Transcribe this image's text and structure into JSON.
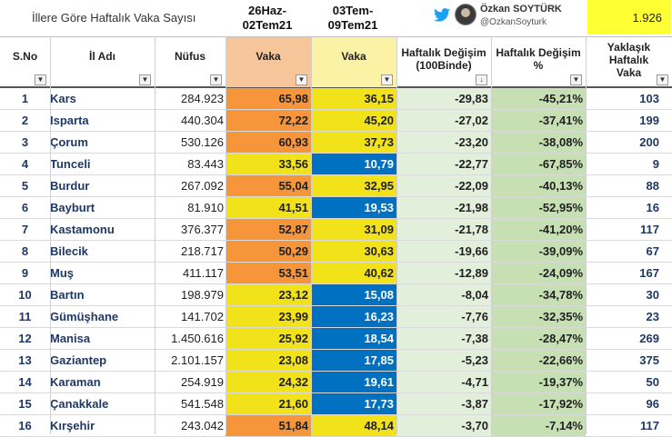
{
  "header": {
    "title": "İllere Göre Haftalık Vaka Sayısı",
    "period1": [
      "26Haz-",
      "02Tem21"
    ],
    "period2": [
      "03Tem-",
      "09Tem21"
    ],
    "author": "Özkan SOYTÜRK",
    "handle": "@OzkanSoyturk",
    "total": "1.926",
    "icons": [
      "twitter-icon",
      "avatar"
    ]
  },
  "columns": [
    {
      "key": "sno",
      "label": [
        "S.No"
      ]
    },
    {
      "key": "il",
      "label": [
        "İl Adı"
      ]
    },
    {
      "key": "nufus",
      "label": [
        "Nüfus"
      ]
    },
    {
      "key": "v1",
      "label": [
        "Vaka"
      ]
    },
    {
      "key": "v2",
      "label": [
        "Vaka"
      ]
    },
    {
      "key": "d1",
      "label": [
        "Haftalık Değişim",
        "(100Binde)"
      ]
    },
    {
      "key": "d2",
      "label": [
        "Haftalık Değişim",
        "%"
      ]
    },
    {
      "key": "yak",
      "label": [
        "Yaklaşık",
        "Haftalık",
        "Vaka"
      ]
    }
  ],
  "colors": {
    "orange": "#f7953a",
    "yellow": "#f2e21a",
    "blue": "#0070c0",
    "change_light": "#e2efda",
    "change_mid": "#c6e0b4",
    "total_bg": "#ffff33"
  },
  "rows": [
    {
      "sno": "1",
      "il": "Kars",
      "nufus": "284.923",
      "v1": "65,98",
      "v1c": "orange",
      "v2": "36,15",
      "v2c": "yellow",
      "d1": "-29,83",
      "d2": "-45,21%",
      "yak": "103"
    },
    {
      "sno": "2",
      "il": "Isparta",
      "nufus": "440.304",
      "v1": "72,22",
      "v1c": "orange",
      "v2": "45,20",
      "v2c": "yellow",
      "d1": "-27,02",
      "d2": "-37,41%",
      "yak": "199"
    },
    {
      "sno": "3",
      "il": "Çorum",
      "nufus": "530.126",
      "v1": "60,93",
      "v1c": "orange",
      "v2": "37,73",
      "v2c": "yellow",
      "d1": "-23,20",
      "d2": "-38,08%",
      "yak": "200"
    },
    {
      "sno": "4",
      "il": "Tunceli",
      "nufus": "83.443",
      "v1": "33,56",
      "v1c": "yellow",
      "v2": "10,79",
      "v2c": "blue",
      "d1": "-22,77",
      "d2": "-67,85%",
      "yak": "9"
    },
    {
      "sno": "5",
      "il": "Burdur",
      "nufus": "267.092",
      "v1": "55,04",
      "v1c": "orange",
      "v2": "32,95",
      "v2c": "yellow",
      "d1": "-22,09",
      "d2": "-40,13%",
      "yak": "88"
    },
    {
      "sno": "6",
      "il": "Bayburt",
      "nufus": "81.910",
      "v1": "41,51",
      "v1c": "yellow",
      "v2": "19,53",
      "v2c": "blue",
      "d1": "-21,98",
      "d2": "-52,95%",
      "yak": "16"
    },
    {
      "sno": "7",
      "il": "Kastamonu",
      "nufus": "376.377",
      "v1": "52,87",
      "v1c": "orange",
      "v2": "31,09",
      "v2c": "yellow",
      "d1": "-21,78",
      "d2": "-41,20%",
      "yak": "117"
    },
    {
      "sno": "8",
      "il": "Bilecik",
      "nufus": "218.717",
      "v1": "50,29",
      "v1c": "orange",
      "v2": "30,63",
      "v2c": "yellow",
      "d1": "-19,66",
      "d2": "-39,09%",
      "yak": "67"
    },
    {
      "sno": "9",
      "il": "Muş",
      "nufus": "411.117",
      "v1": "53,51",
      "v1c": "orange",
      "v2": "40,62",
      "v2c": "yellow",
      "d1": "-12,89",
      "d2": "-24,09%",
      "yak": "167"
    },
    {
      "sno": "10",
      "il": "Bartın",
      "nufus": "198.979",
      "v1": "23,12",
      "v1c": "yellow",
      "v2": "15,08",
      "v2c": "blue",
      "d1": "-8,04",
      "d2": "-34,78%",
      "yak": "30"
    },
    {
      "sno": "11",
      "il": "Gümüşhane",
      "nufus": "141.702",
      "v1": "23,99",
      "v1c": "yellow",
      "v2": "16,23",
      "v2c": "blue",
      "d1": "-7,76",
      "d2": "-32,35%",
      "yak": "23"
    },
    {
      "sno": "12",
      "il": "Manisa",
      "nufus": "1.450.616",
      "v1": "25,92",
      "v1c": "yellow",
      "v2": "18,54",
      "v2c": "blue",
      "d1": "-7,38",
      "d2": "-28,47%",
      "yak": "269"
    },
    {
      "sno": "13",
      "il": "Gaziantep",
      "nufus": "2.101.157",
      "v1": "23,08",
      "v1c": "yellow",
      "v2": "17,85",
      "v2c": "blue",
      "d1": "-5,23",
      "d2": "-22,66%",
      "yak": "375"
    },
    {
      "sno": "14",
      "il": "Karaman",
      "nufus": "254.919",
      "v1": "24,32",
      "v1c": "yellow",
      "v2": "19,61",
      "v2c": "blue",
      "d1": "-4,71",
      "d2": "-19,37%",
      "yak": "50"
    },
    {
      "sno": "15",
      "il": "Çanakkale",
      "nufus": "541.548",
      "v1": "21,60",
      "v1c": "yellow",
      "v2": "17,73",
      "v2c": "blue",
      "d1": "-3,87",
      "d2": "-17,92%",
      "yak": "96"
    },
    {
      "sno": "16",
      "il": "Kırşehir",
      "nufus": "243.042",
      "v1": "51,84",
      "v1c": "orange",
      "v2": "48,14",
      "v2c": "yellow",
      "d1": "-3,70",
      "d2": "-7,14%",
      "yak": "117"
    }
  ]
}
